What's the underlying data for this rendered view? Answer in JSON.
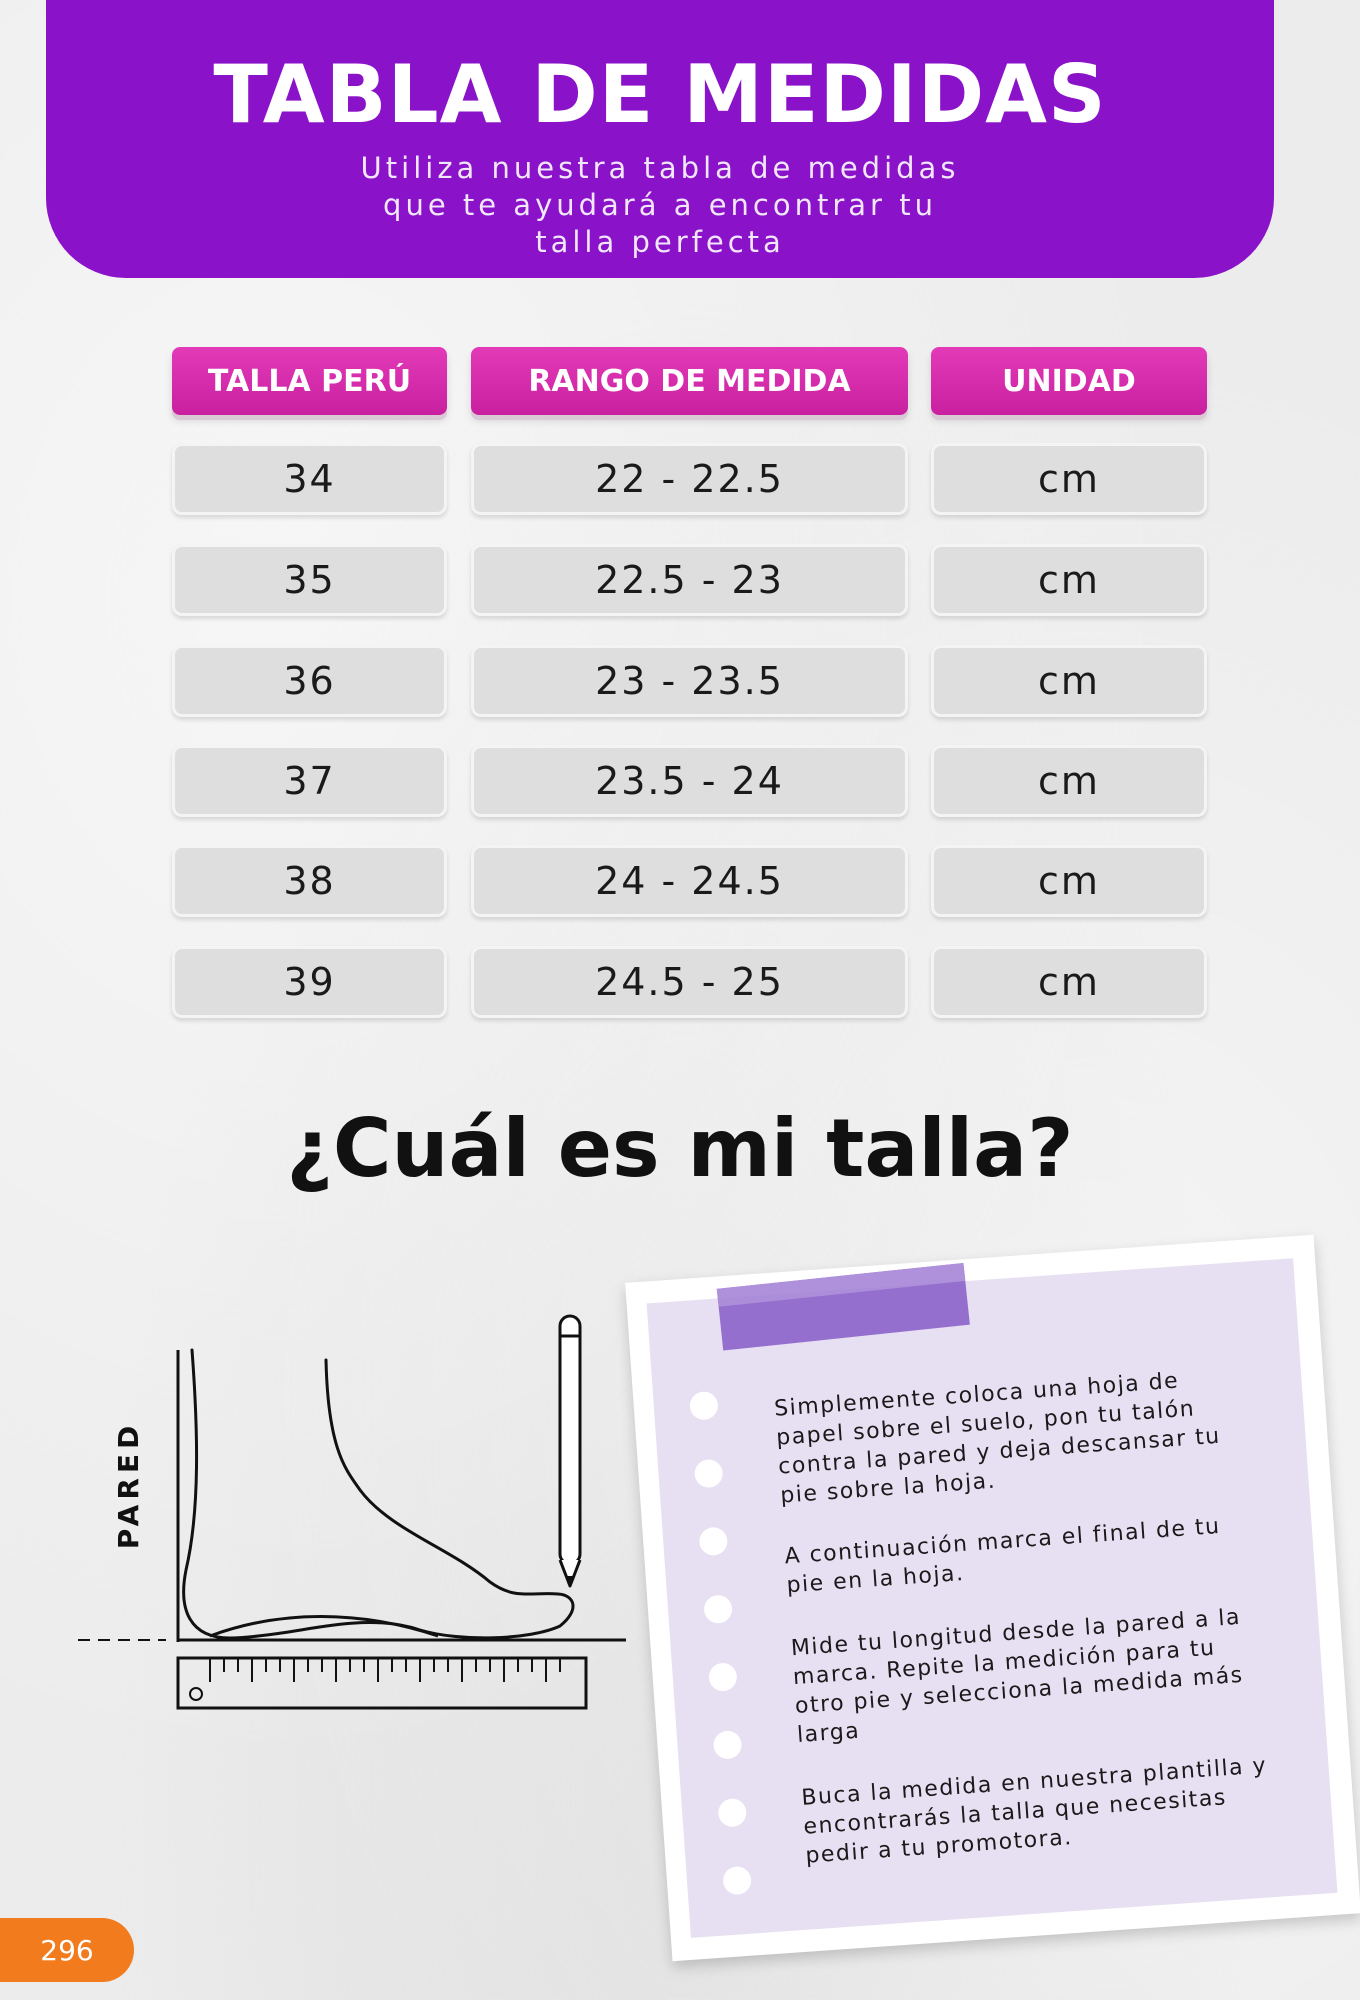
{
  "header": {
    "title": "TABLA DE MEDIDAS",
    "subtitle": "Utiliza nuestra tabla de medidas que te ayudará a encontrar tu talla perfecta"
  },
  "table": {
    "columns": [
      "TALLA PERÚ",
      "RANGO DE MEDIDA",
      "UNIDAD"
    ],
    "rows": [
      {
        "size": "34",
        "range": "22 - 22.5",
        "unit": "cm"
      },
      {
        "size": "35",
        "range": "22.5 - 23",
        "unit": "cm"
      },
      {
        "size": "36",
        "range": "23 - 23.5",
        "unit": "cm"
      },
      {
        "size": "37",
        "range": "23.5 - 24",
        "unit": "cm"
      },
      {
        "size": "38",
        "range": "24 - 24.5",
        "unit": "cm"
      },
      {
        "size": "39",
        "range": "24.5 - 25",
        "unit": "cm"
      }
    ]
  },
  "question": "¿Cuál es mi talla?",
  "diagram": {
    "wall_label": "PARED",
    "ruler_icon": "ruler-icon",
    "foot_icon": "foot-outline-icon",
    "pencil_icon": "pencil-icon"
  },
  "note": {
    "paragraphs": [
      "Simplemente coloca una hoja de papel sobre el suelo, pon tu talón contra la pared y deja descansar tu pie sobre la hoja.",
      "A continuación marca el final de tu pie en la hoja.",
      "Mide tu longitud desde la pared a la marca. Repite la medición para tu otro pie y selecciona la medida más larga",
      "Buca la medida en nuestra plantilla y encontrarás la talla que necesitas pedir a tu promotora."
    ]
  },
  "page_number": "296",
  "colors": {
    "header_purple": "#8a12c9",
    "column_pink": "#d42aac",
    "note_lavender": "#e7dff2",
    "tape_purple": "#8e66cc",
    "page_badge_orange": "#f17b1d"
  }
}
